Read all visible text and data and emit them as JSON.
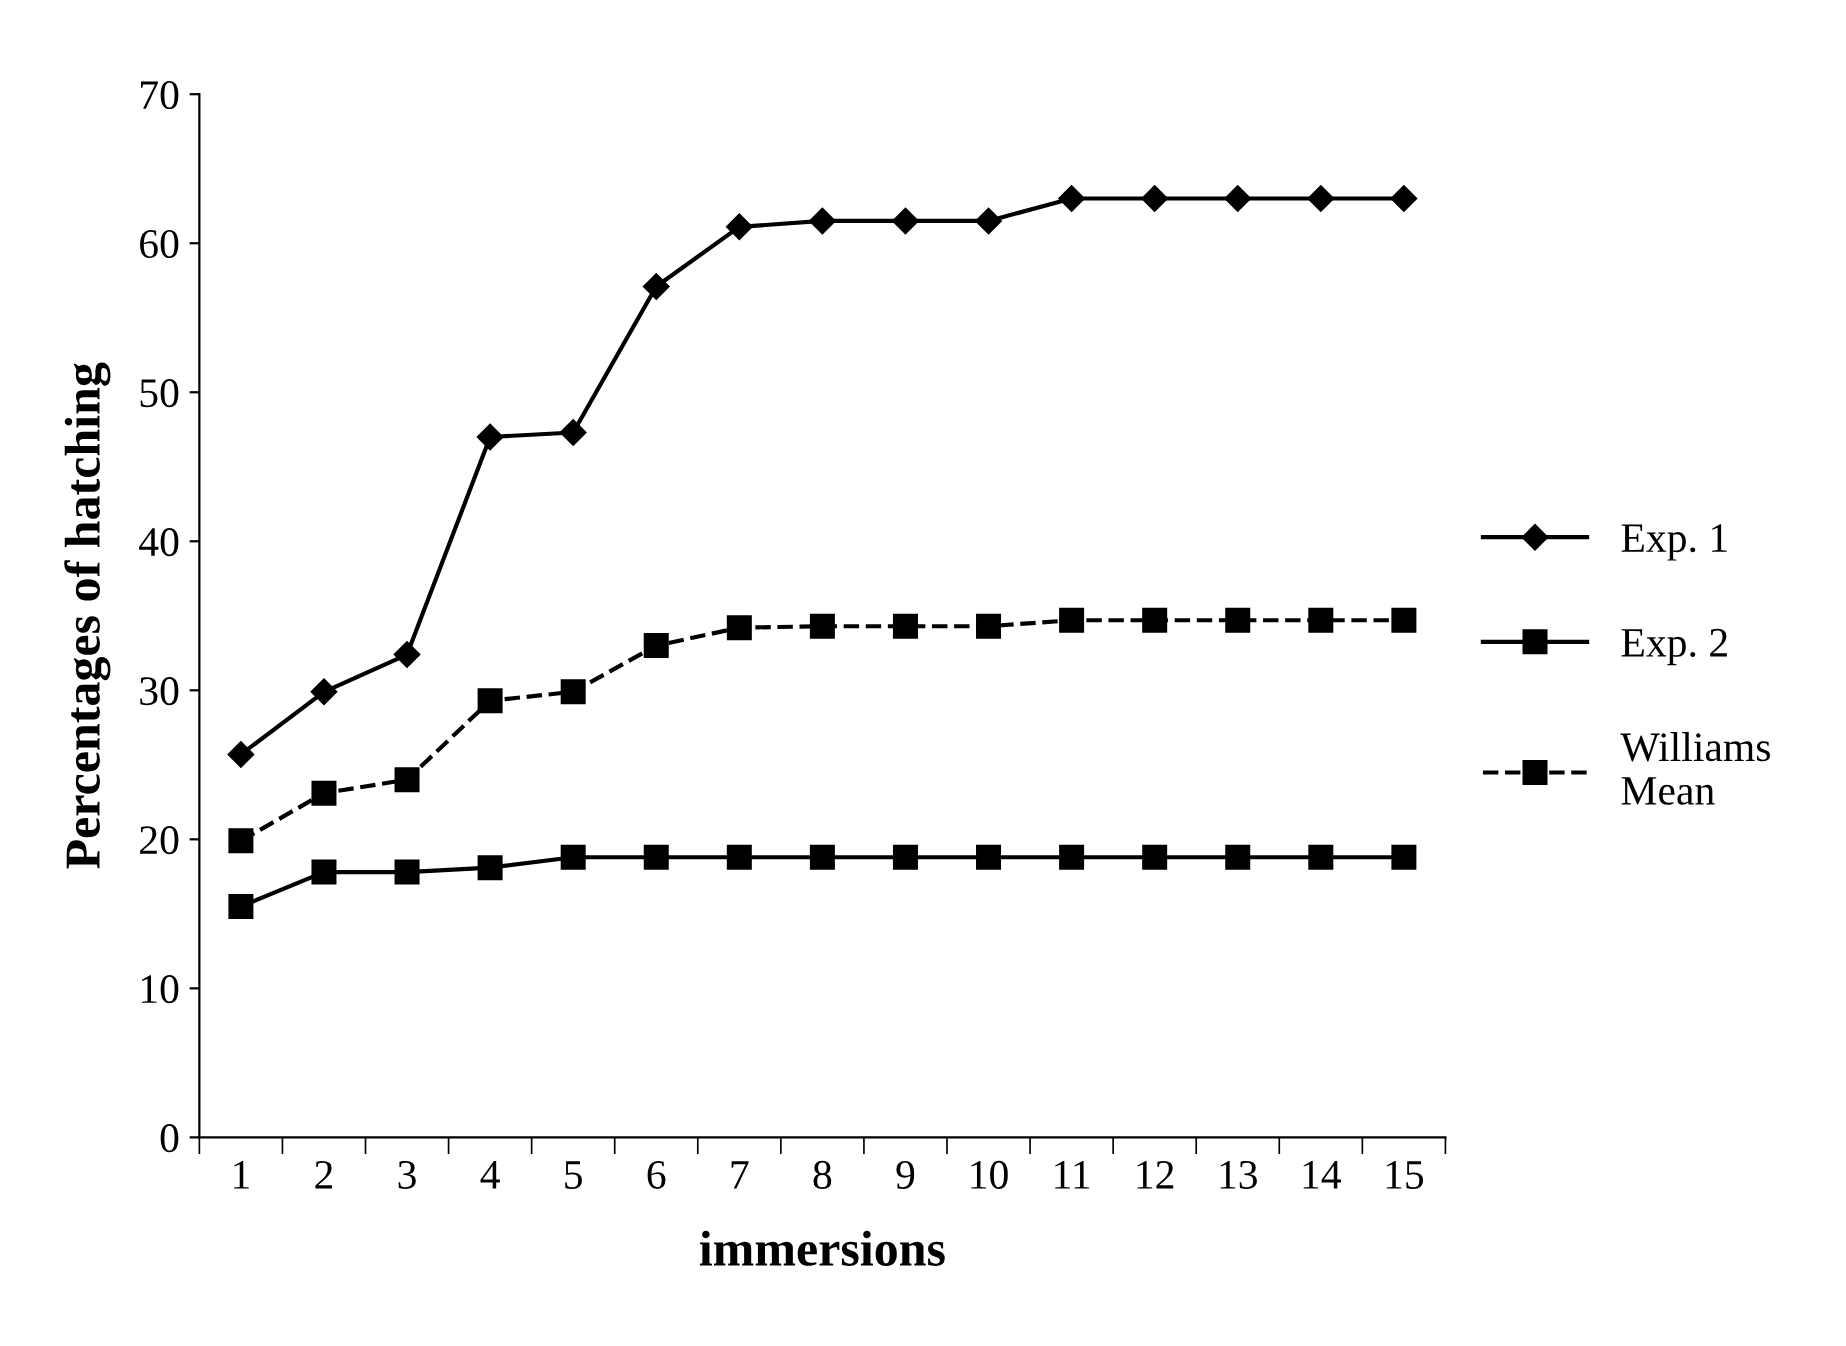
{
  "chart_data": {
    "type": "line",
    "xlabel": "immersions",
    "ylabel": "Percentages of hatching",
    "categories": [
      "1",
      "2",
      "3",
      "4",
      "5",
      "6",
      "7",
      "8",
      "9",
      "10",
      "11",
      "12",
      "13",
      "14",
      "15"
    ],
    "series": [
      {
        "name": "Exp. 1",
        "color": "#000000",
        "marker": "diamond",
        "line_style": "solid",
        "values": [
          25.7,
          29.9,
          32.4,
          47.0,
          47.3,
          57.1,
          61.1,
          61.5,
          61.5,
          61.5,
          63.0,
          63.0,
          63.0,
          63.0,
          63.0
        ]
      },
      {
        "name": "Exp. 2",
        "color": "#000000",
        "marker": "square",
        "line_style": "solid",
        "values": [
          15.5,
          17.8,
          17.8,
          18.1,
          18.8,
          18.8,
          18.8,
          18.8,
          18.8,
          18.8,
          18.8,
          18.8,
          18.8,
          18.8,
          18.8
        ]
      },
      {
        "name": "Williams\nMean",
        "color": "#000000",
        "marker": "square",
        "line_style": "dashed",
        "values": [
          19.9,
          23.1,
          24.0,
          29.3,
          29.9,
          33.0,
          34.2,
          34.3,
          34.3,
          34.3,
          34.7,
          34.7,
          34.7,
          34.7,
          34.7
        ]
      }
    ],
    "ylim": [
      0,
      70
    ],
    "yticks": [
      0,
      10,
      20,
      30,
      40,
      50,
      60,
      70
    ],
    "grid": false,
    "legend": "right"
  }
}
